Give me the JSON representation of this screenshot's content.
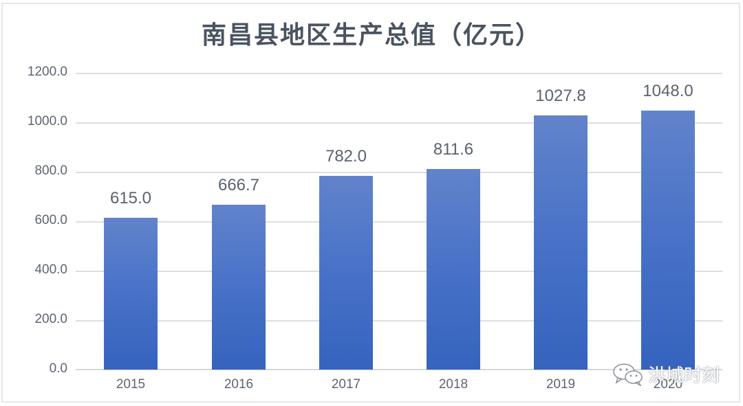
{
  "chart_data": {
    "type": "bar",
    "title": "南昌县地区生产总值（亿元）",
    "categories": [
      "2015",
      "2016",
      "2017",
      "2018",
      "2019",
      "2020"
    ],
    "values": [
      615.0,
      666.7,
      782.0,
      811.6,
      1027.8,
      1048.0
    ],
    "value_labels": [
      "615.0",
      "666.7",
      "782.0",
      "811.6",
      "1027.8",
      "1048.0"
    ],
    "xlabel": "",
    "ylabel": "",
    "ylim": [
      0,
      1200
    ],
    "yticks": [
      "0.0",
      "200.0",
      "400.0",
      "600.0",
      "800.0",
      "1000.0",
      "1200.0"
    ],
    "grid": true,
    "legend": null,
    "bar_color": "#4a73c9"
  },
  "watermark": {
    "icon": "wechat-icon",
    "text": "洪城时刻"
  }
}
